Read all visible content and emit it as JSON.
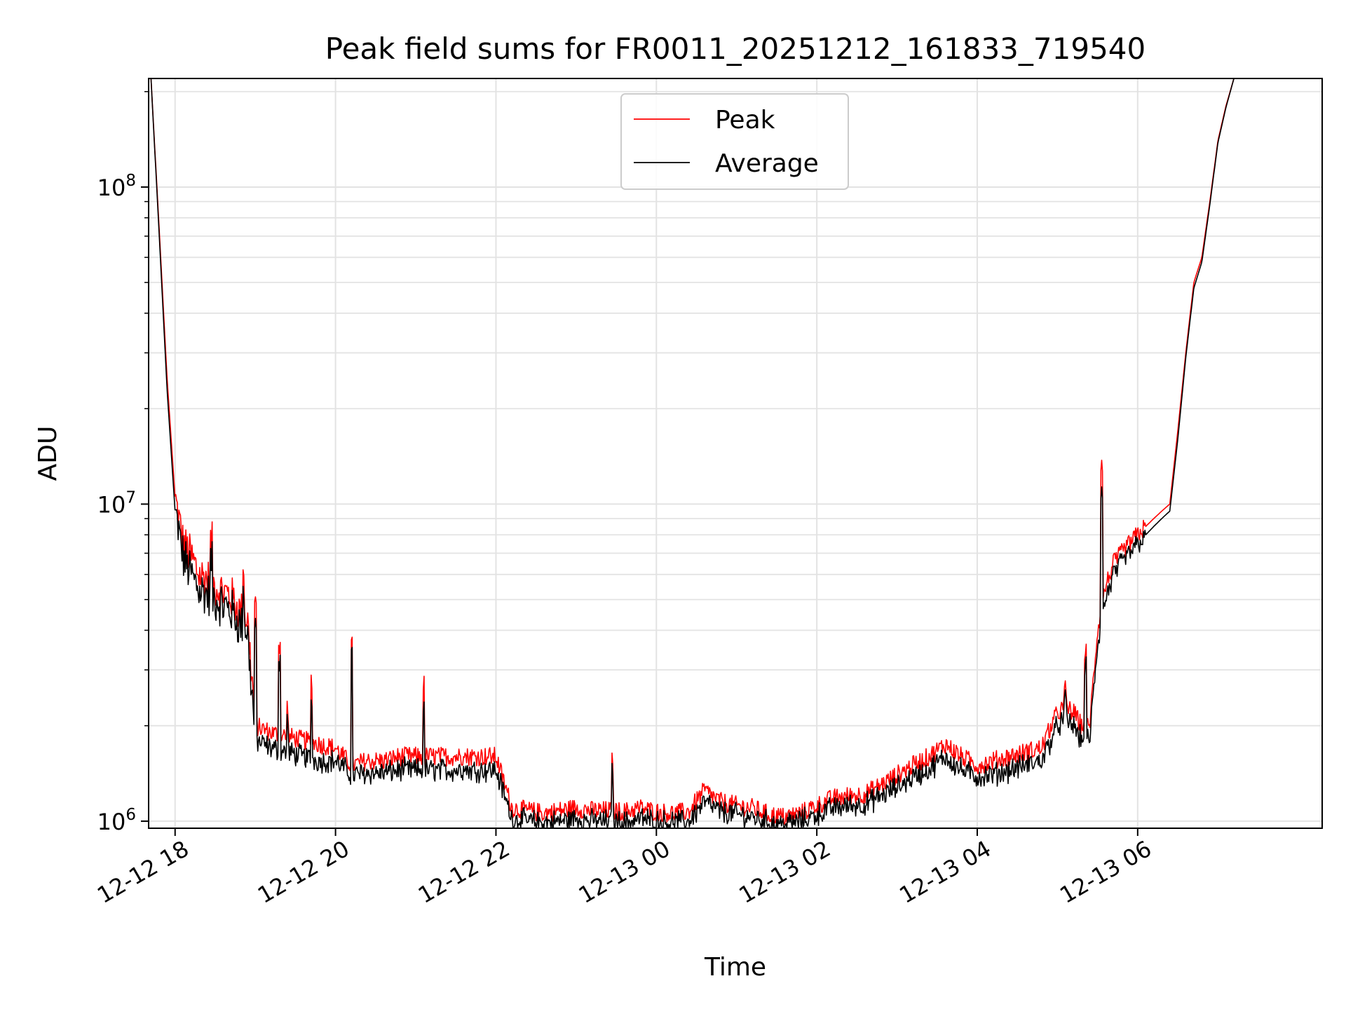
{
  "chart_data": {
    "type": "line",
    "title": "Peak field sums for FR0011_20251212_161833_719540",
    "xlabel": "Time",
    "ylabel": "ADU",
    "yscale": "log",
    "xlim": [
      -0.33,
      14.3
    ],
    "ylim": [
      950000,
      220000000
    ],
    "x_unit": "hours after 2025-12-12 18:00",
    "x_tick_labels": [
      "12-12 18",
      "12-12 20",
      "12-12 22",
      "12-13 00",
      "12-13 02",
      "12-13 04",
      "12-13 06"
    ],
    "x_tick_values": [
      0,
      2,
      4,
      6,
      8,
      10,
      12
    ],
    "y_ticks": [
      {
        "value": 1000000,
        "base": "10",
        "exp": "6"
      },
      {
        "value": 10000000,
        "base": "10",
        "exp": "7"
      },
      {
        "value": 100000000,
        "base": "10",
        "exp": "8"
      }
    ],
    "grid": true,
    "legend_position": "top-center",
    "series": [
      {
        "name": "Peak",
        "color": "#ff0000"
      },
      {
        "name": "Average",
        "color": "#000000"
      }
    ],
    "x": [
      -0.3,
      -0.2,
      -0.1,
      0.0,
      0.1,
      0.2,
      0.3,
      0.4,
      0.5,
      0.6,
      0.7,
      0.8,
      0.9,
      1.0,
      1.2,
      1.4,
      1.6,
      1.8,
      2.0,
      2.2,
      2.4,
      2.6,
      2.8,
      3.0,
      3.2,
      3.4,
      3.6,
      3.8,
      4.0,
      4.2,
      4.4,
      4.6,
      4.8,
      5.0,
      5.2,
      5.4,
      5.6,
      5.8,
      6.0,
      6.2,
      6.4,
      6.6,
      6.8,
      7.0,
      7.2,
      7.4,
      7.6,
      7.8,
      8.0,
      8.2,
      8.4,
      8.6,
      8.8,
      9.0,
      9.2,
      9.4,
      9.6,
      9.8,
      10.0,
      10.2,
      10.4,
      10.6,
      10.8,
      11.0,
      11.1,
      11.2,
      11.3,
      11.4,
      11.5,
      11.6,
      11.7,
      11.8,
      11.9,
      12.0,
      12.1,
      12.2,
      12.3,
      12.4,
      12.5,
      12.6,
      12.7,
      12.8,
      12.9,
      13.0,
      13.1,
      13.2
    ],
    "peak": [
      220000000.0,
      75000000.0,
      25000000.0,
      10500000.0,
      7500000.0,
      6800000.0,
      6000000.0,
      5800000.0,
      5500000.0,
      5300000.0,
      5100000.0,
      4600000.0,
      4400000.0,
      2000000.0,
      1900000.0,
      1850000.0,
      1800000.0,
      1750000.0,
      1700000.0,
      1500000.0,
      1550000.0,
      1550000.0,
      1600000.0,
      1600000.0,
      1600000.0,
      1600000.0,
      1600000.0,
      1600000.0,
      1600000.0,
      1100000.0,
      1080000.0,
      1060000.0,
      1080000.0,
      1100000.0,
      1080000.0,
      1080000.0,
      1070000.0,
      1100000.0,
      1070000.0,
      1060000.0,
      1070000.0,
      1250000.0,
      1150000.0,
      1120000.0,
      1100000.0,
      1050000.0,
      1030000.0,
      1060000.0,
      1120000.0,
      1180000.0,
      1200000.0,
      1220000.0,
      1300000.0,
      1400000.0,
      1500000.0,
      1600000.0,
      1750000.0,
      1600000.0,
      1500000.0,
      1550000.0,
      1600000.0,
      1650000.0,
      1700000.0,
      2200000.0,
      2300000.0,
      2200000.0,
      2000000.0,
      2000000.0,
      4000000.0,
      5500000.0,
      6500000.0,
      7000000.0,
      7500000.0,
      8000000.0,
      8500000.0,
      9000000.0,
      9500000.0,
      10000000.0,
      17000000.0,
      30000000.0,
      50000000.0,
      60000000.0,
      90000000.0,
      140000000.0,
      180000000.0,
      220000000.0
    ],
    "average": [
      220000000.0,
      72000000.0,
      23000000.0,
      9500000.0,
      6800000.0,
      6000000.0,
      5400000.0,
      5200000.0,
      5000000.0,
      4800000.0,
      4600000.0,
      4200000.0,
      4000000.0,
      1800000.0,
      1700000.0,
      1650000.0,
      1600000.0,
      1550000.0,
      1550000.0,
      1400000.0,
      1420000.0,
      1420000.0,
      1450000.0,
      1450000.0,
      1450000.0,
      1450000.0,
      1450000.0,
      1450000.0,
      1450000.0,
      1020000.0,
      1000000.0,
      990000.0,
      1000000.0,
      1020000.0,
      1000000.0,
      1000000.0,
      990000.0,
      1020000.0,
      1000000.0,
      990000.0,
      1000000.0,
      1150000.0,
      1070000.0,
      1050000.0,
      1030000.0,
      990000.0,
      980000.0,
      1000000.0,
      1050000.0,
      1100000.0,
      1120000.0,
      1130000.0,
      1200000.0,
      1280000.0,
      1380000.0,
      1450000.0,
      1600000.0,
      1450000.0,
      1380000.0,
      1400000.0,
      1450000.0,
      1500000.0,
      1550000.0,
      2000000.0,
      2100000.0,
      2000000.0,
      1800000.0,
      1800000.0,
      3600000.0,
      5000000.0,
      6000000.0,
      6500000.0,
      7000000.0,
      7500000.0,
      8000000.0,
      8500000.0,
      9000000.0,
      9500000.0,
      16000000.0,
      29000000.0,
      48000000.0,
      58000000.0,
      88000000.0,
      138000000.0,
      178000000.0,
      220000000.0
    ],
    "spikes": [
      {
        "x": 0.45,
        "peak": 7500000.0,
        "average": 6500000.0
      },
      {
        "x": 0.85,
        "peak": 6500000.0,
        "average": 5600000.0
      },
      {
        "x": 1.0,
        "peak": 4800000.0,
        "average": 4000000.0
      },
      {
        "x": 1.3,
        "peak": 3600000.0,
        "average": 3200000.0
      },
      {
        "x": 1.4,
        "peak": 2300000.0,
        "average": 2100000.0
      },
      {
        "x": 1.7,
        "peak": 2800000.0,
        "average": 2400000.0
      },
      {
        "x": 2.2,
        "peak": 3600000.0,
        "average": 3400000.0
      },
      {
        "x": 3.1,
        "peak": 2700000.0,
        "average": 2300000.0
      },
      {
        "x": 3.6,
        "peak": 1700000.0,
        "average": 1550000.0
      },
      {
        "x": 5.45,
        "peak": 1600000.0,
        "average": 1500000.0
      },
      {
        "x": 11.1,
        "peak": 2600000.0,
        "average": 2400000.0
      },
      {
        "x": 11.35,
        "peak": 3400000.0,
        "average": 3100000.0
      },
      {
        "x": 11.55,
        "peak": 13500000.0,
        "average": 11000000.0
      }
    ]
  }
}
